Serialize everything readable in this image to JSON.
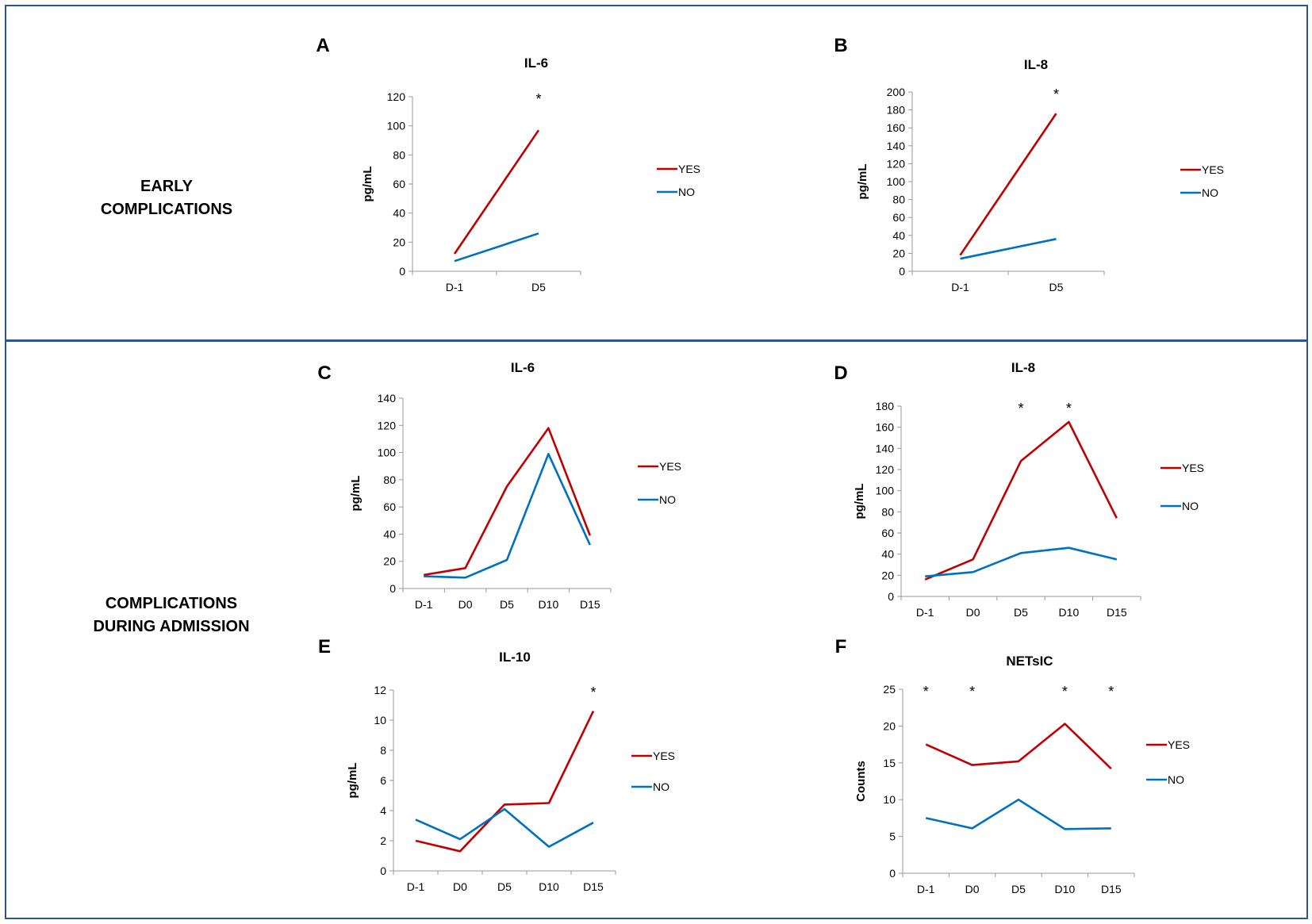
{
  "colors": {
    "yes": "#c00000",
    "no": "#0070c0",
    "axis": "#999999",
    "border": "#2f5496"
  },
  "sections": {
    "early": {
      "label_lines": [
        "EARLY",
        "COMPLICATIONS"
      ]
    },
    "admission": {
      "label_lines": [
        "COMPLICATIONS",
        "DURING ADMISSION"
      ]
    }
  },
  "chart_data": [
    {
      "panel": "A",
      "type": "line",
      "title": "IL-6",
      "ylabel": "pg/mL",
      "xlabel": "",
      "categories": [
        "D-1",
        "D5"
      ],
      "ylim": [
        0,
        120
      ],
      "ystep": 20,
      "series": [
        {
          "name": "YES",
          "values": [
            12,
            97
          ]
        },
        {
          "name": "NO",
          "values": [
            7,
            26
          ]
        }
      ],
      "significance": [
        null,
        "*"
      ],
      "legend": "right"
    },
    {
      "panel": "B",
      "type": "line",
      "title": "IL-8",
      "ylabel": "pg/mL",
      "xlabel": "",
      "categories": [
        "D-1",
        "D5"
      ],
      "ylim": [
        0,
        200
      ],
      "ystep": 20,
      "series": [
        {
          "name": "YES",
          "values": [
            18,
            176
          ]
        },
        {
          "name": "NO",
          "values": [
            14,
            36
          ]
        }
      ],
      "significance": [
        null,
        "*"
      ],
      "legend": "right"
    },
    {
      "panel": "C",
      "type": "line",
      "title": "IL-6",
      "ylabel": "pg/mL",
      "xlabel": "",
      "categories": [
        "D-1",
        "D0",
        "D5",
        "D10",
        "D15"
      ],
      "ylim": [
        0,
        140
      ],
      "ystep": 20,
      "series": [
        {
          "name": "YES",
          "values": [
            10,
            15,
            75,
            118,
            39
          ]
        },
        {
          "name": "NO",
          "values": [
            9,
            8,
            21,
            99,
            32
          ]
        }
      ],
      "significance": [
        null,
        null,
        null,
        null,
        null
      ],
      "legend": "right"
    },
    {
      "panel": "D",
      "type": "line",
      "title": "IL-8",
      "ylabel": "pg/mL",
      "xlabel": "",
      "categories": [
        "D-1",
        "D0",
        "D5",
        "D10",
        "D15"
      ],
      "ylim": [
        0,
        180
      ],
      "ystep": 20,
      "series": [
        {
          "name": "YES",
          "values": [
            16,
            35,
            128,
            165,
            74
          ]
        },
        {
          "name": "NO",
          "values": [
            19,
            23,
            41,
            46,
            35
          ]
        }
      ],
      "significance": [
        null,
        null,
        "*",
        "*",
        null
      ],
      "legend": "right"
    },
    {
      "panel": "E",
      "type": "line",
      "title": "IL-10",
      "ylabel": "pg/mL",
      "xlabel": "",
      "categories": [
        "D-1",
        "D0",
        "D5",
        "D10",
        "D15"
      ],
      "ylim": [
        0,
        12
      ],
      "ystep": 2,
      "series": [
        {
          "name": "YES",
          "values": [
            2.0,
            1.3,
            4.4,
            4.5,
            10.6
          ]
        },
        {
          "name": "NO",
          "values": [
            3.4,
            2.1,
            4.1,
            1.6,
            3.2
          ]
        }
      ],
      "significance": [
        null,
        null,
        null,
        null,
        "*"
      ],
      "legend": "right"
    },
    {
      "panel": "F",
      "type": "line",
      "title": "NETsIC",
      "ylabel": "Counts",
      "xlabel": "",
      "categories": [
        "D-1",
        "D0",
        "D5",
        "D10",
        "D15"
      ],
      "ylim": [
        0,
        25
      ],
      "ystep": 5,
      "series": [
        {
          "name": "YES",
          "values": [
            17.5,
            14.7,
            15.2,
            20.3,
            14.2
          ]
        },
        {
          "name": "NO",
          "values": [
            7.5,
            6.1,
            10.0,
            6.0,
            6.1
          ]
        }
      ],
      "significance": [
        "*",
        "*",
        null,
        "*",
        "*"
      ],
      "legend": "right"
    }
  ]
}
